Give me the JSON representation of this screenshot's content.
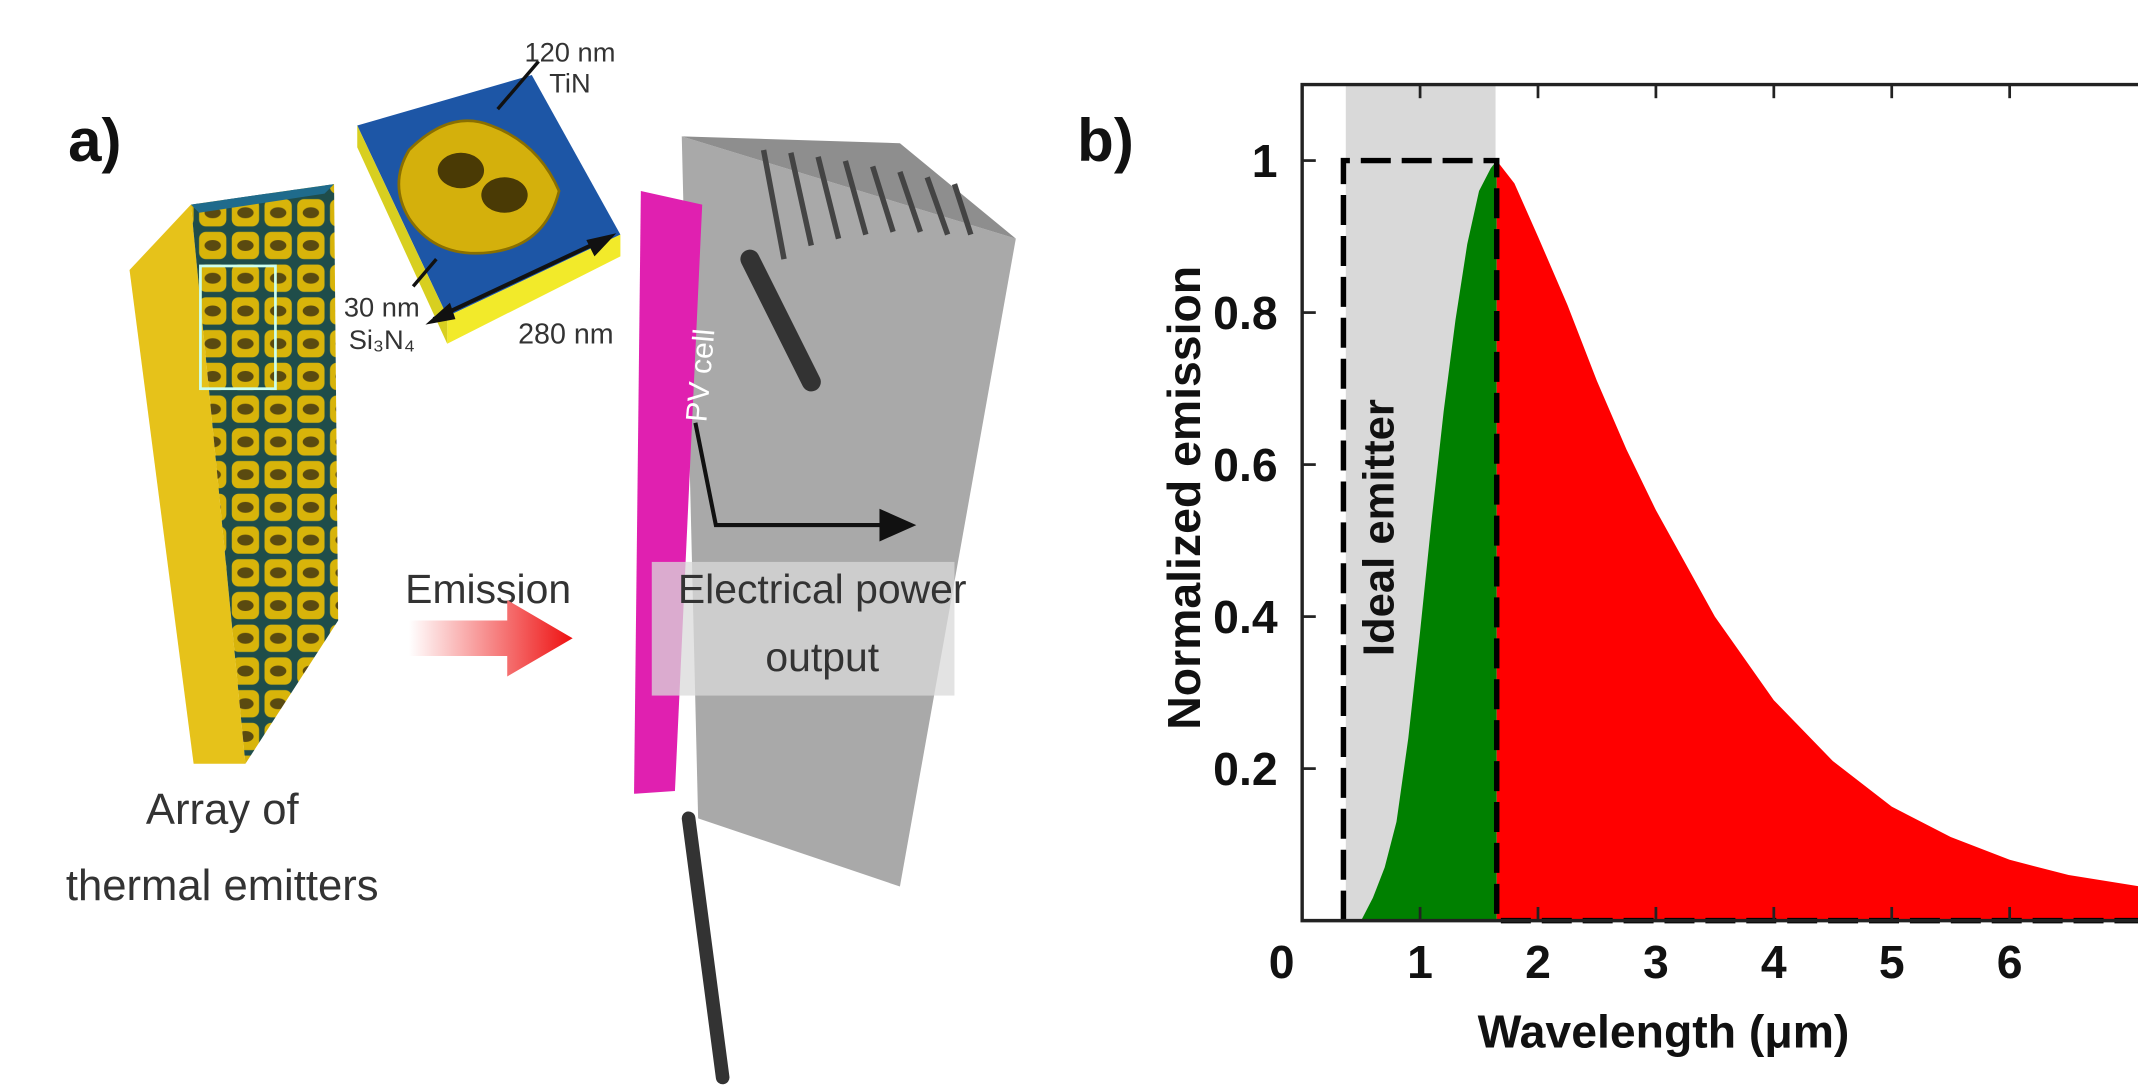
{
  "panel_a": {
    "label": "a)",
    "cell_thickness": "120 nm",
    "cell_material": "TiN",
    "substrate_thickness": "30 nm",
    "substrate_material": "Si₃N₄",
    "period": "280 nm",
    "pv_label": "PV cell",
    "emission": "Emission",
    "output_line1": "Electrical power",
    "output_line2": "output",
    "array_line1": "Array of",
    "array_line2": "thermal emitters"
  },
  "chart_data": {
    "type": "area",
    "label": "b)",
    "xlabel": "Wavelength (μm)",
    "ylabel": "Normalized emission",
    "xlim": [
      0,
      7.1
    ],
    "ylim": [
      0,
      1.1
    ],
    "xticks": [
      0,
      1,
      2,
      3,
      4,
      5,
      6
    ],
    "yticks": [
      0.2,
      0.4,
      0.6,
      0.8,
      1
    ],
    "shade": [
      0.37,
      1.64
    ],
    "series": [
      {
        "color": "#008000",
        "x": [
          0.5,
          0.6,
          0.7,
          0.8,
          0.9,
          1.0,
          1.1,
          1.2,
          1.3,
          1.4,
          1.5,
          1.6,
          1.65
        ],
        "values": [
          0,
          0.03,
          0.07,
          0.13,
          0.24,
          0.38,
          0.53,
          0.67,
          0.79,
          0.89,
          0.96,
          0.99,
          1
        ]
      },
      {
        "color": "#ff0000",
        "x": [
          1.65,
          1.8,
          2,
          2.25,
          2.5,
          2.75,
          3,
          3.5,
          4,
          4.5,
          5,
          5.5,
          6,
          6.5,
          7.1
        ],
        "values": [
          1,
          0.97,
          0.9,
          0.81,
          0.71,
          0.62,
          0.54,
          0.4,
          0.29,
          0.21,
          0.15,
          0.11,
          0.08,
          0.06,
          0.045
        ]
      },
      {
        "name": "Ideal emitter",
        "color": "#000000",
        "dashed": true,
        "x": [
          0.35,
          0.35,
          1.65,
          1.65,
          7.1
        ],
        "values": [
          0,
          1,
          1,
          0,
          0
        ]
      }
    ]
  }
}
